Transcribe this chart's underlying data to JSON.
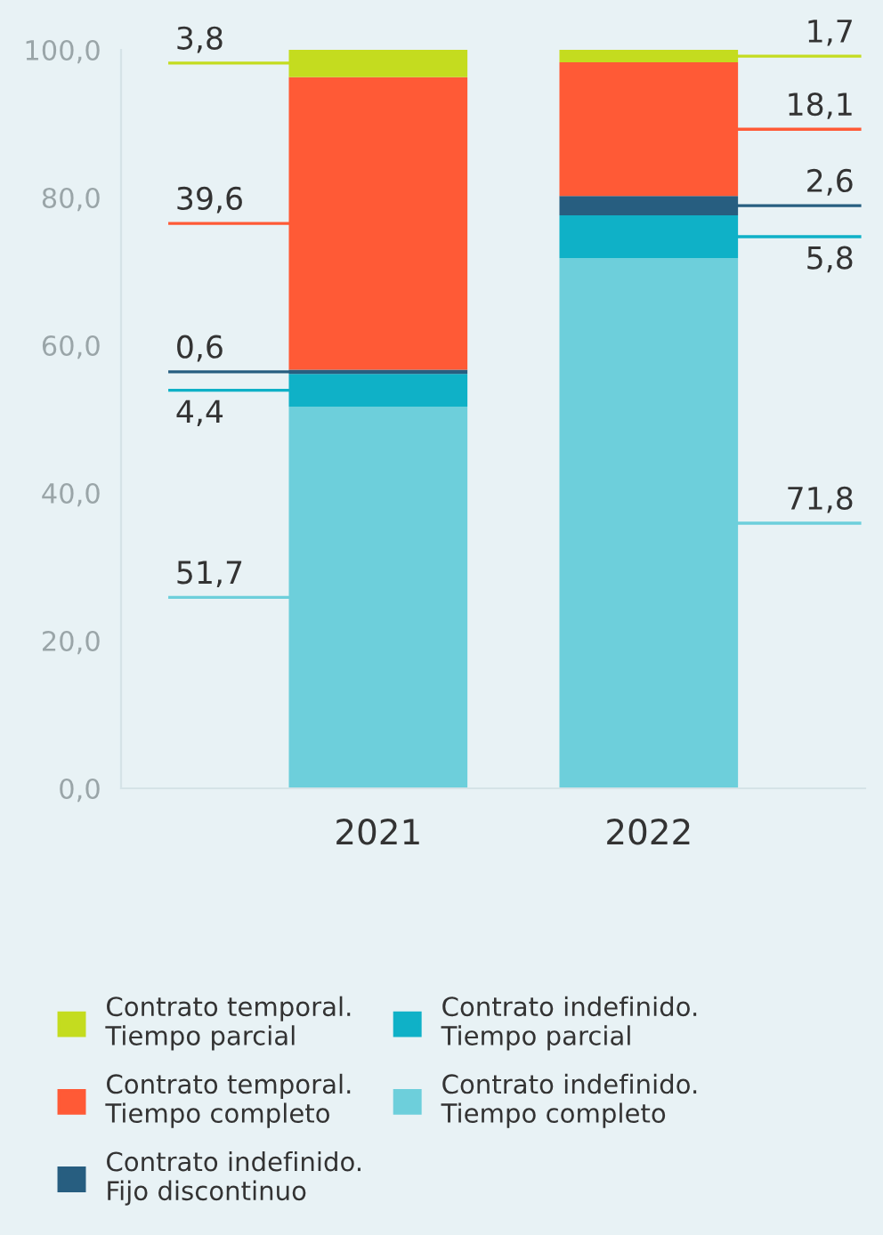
{
  "chart_data": {
    "type": "bar",
    "stacked": true,
    "categories": [
      "2021",
      "2022"
    ],
    "series": [
      {
        "name": "Contrato indefinido.\nTiempo completo",
        "color": "#6dcfdb",
        "values": [
          51.7,
          71.8
        ],
        "value_labels": [
          "51,7",
          "71,8"
        ]
      },
      {
        "name": "Contrato indefinido.\nTiempo parcial",
        "color": "#0fb1c7",
        "values": [
          4.4,
          5.8
        ],
        "value_labels": [
          "4,4",
          "5,8"
        ]
      },
      {
        "name": "Contrato indefinido.\nFijo discontinuo",
        "color": "#275e80",
        "values": [
          0.6,
          2.6
        ],
        "value_labels": [
          "0,6",
          "2,6"
        ]
      },
      {
        "name": "Contrato temporal.\nTiempo completo",
        "color": "#ff5a36",
        "values": [
          39.6,
          18.1
        ],
        "value_labels": [
          "39,6",
          "18,1"
        ]
      },
      {
        "name": "Contrato temporal.\nTiempo parcial",
        "color": "#c4dc1f",
        "values": [
          3.8,
          1.7
        ],
        "value_labels": [
          "3,8",
          "1,7"
        ]
      }
    ],
    "ylim": [
      0,
      100
    ],
    "yticks": [
      {
        "value": 0,
        "label": "0,0"
      },
      {
        "value": 20,
        "label": "20,0"
      },
      {
        "value": 40,
        "label": "40,0"
      },
      {
        "value": 60,
        "label": "60,0"
      },
      {
        "value": 80,
        "label": "80,0"
      },
      {
        "value": 100,
        "label": "100,0"
      }
    ],
    "grid": false,
    "legend": "bottom"
  }
}
